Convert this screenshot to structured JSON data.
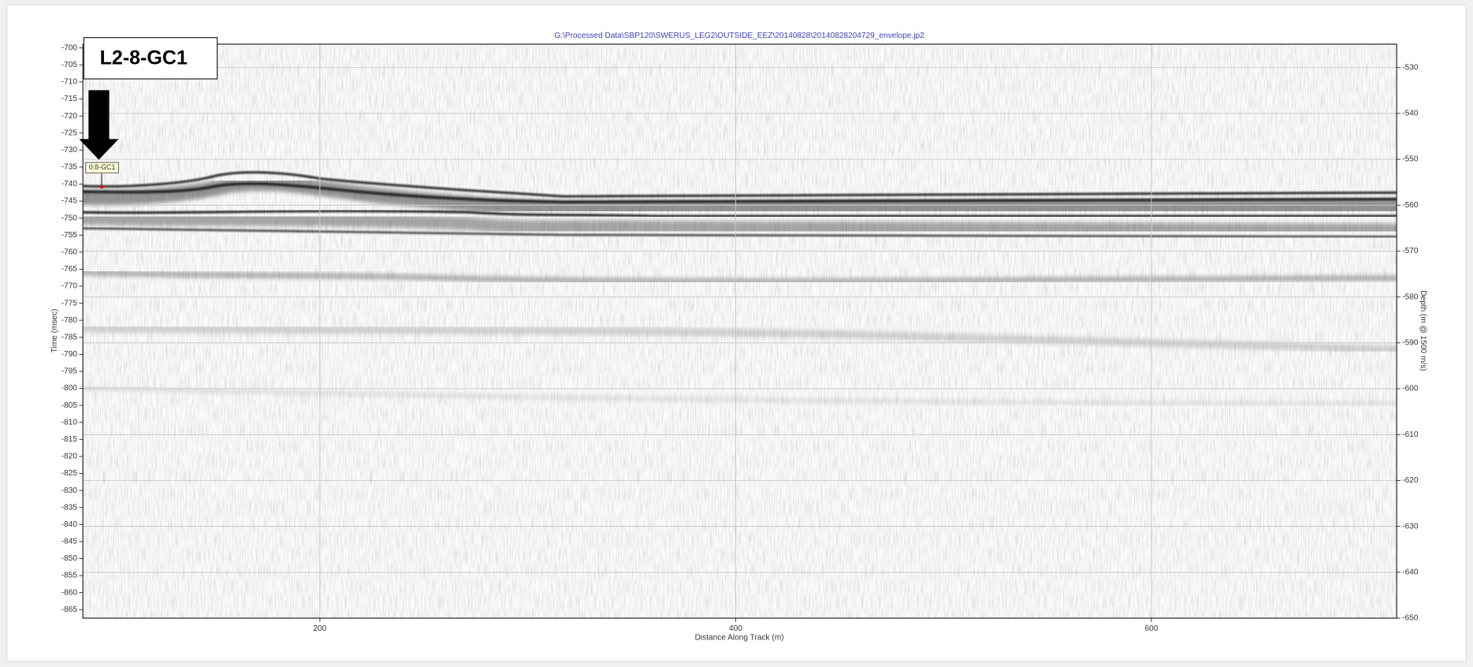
{
  "chart_data": {
    "type": "profile",
    "title": "G:\\Processed  Data\\SBP120\\SWERUS_LEG2\\OUTSIDE_EEZ\\20140828\\20140828204729_envelope.jp2",
    "x_label": "Distance Along Track (m)",
    "y_label": "Time (msec)",
    "y2_label": "Depth (m @ 1500 m/s)",
    "xlim": [
      86,
      718
    ],
    "xticks": [
      200,
      400,
      600
    ],
    "ylim": [
      -698.9,
      -867.5
    ],
    "yticks": [
      -700,
      -705,
      -710,
      -715,
      -720,
      -725,
      -730,
      -735,
      -740,
      -745,
      -750,
      -755,
      -760,
      -765,
      -770,
      -775,
      -780,
      -785,
      -790,
      -795,
      -800,
      -805,
      -810,
      -815,
      -820,
      -825,
      -830,
      -835,
      -840,
      -845,
      -850,
      -855,
      -860,
      -865
    ],
    "y2lim": [
      -524.9,
      -650
    ],
    "y2ticks": [
      -530,
      -540,
      -550,
      -560,
      -570,
      -580,
      -590,
      -600,
      -610,
      -620,
      -630,
      -640,
      -650
    ],
    "grid": true,
    "annotations": [
      "L2-8-GC1",
      "0:8-GC1"
    ]
  }
}
